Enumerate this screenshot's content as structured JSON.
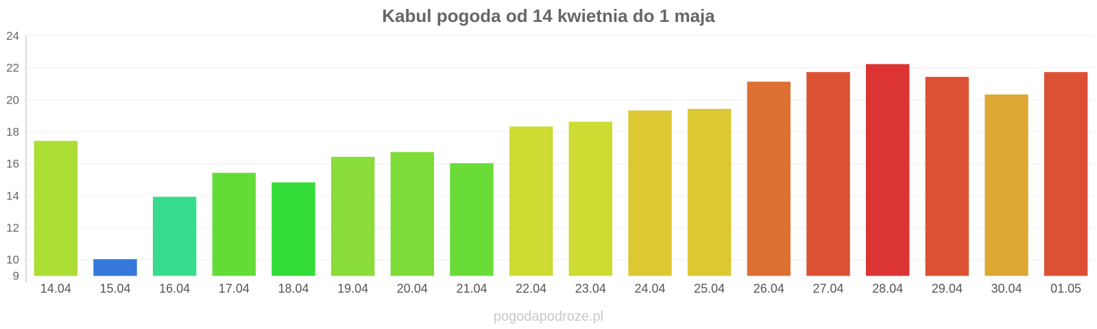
{
  "chart_data": {
    "type": "bar",
    "title": "Kabul pogoda od 14 kwietnia do 1 maja",
    "xlabel": "",
    "ylabel": "",
    "ylim": [
      9,
      24
    ],
    "yticks": [
      9,
      10,
      12,
      14,
      16,
      18,
      20,
      22,
      24
    ],
    "grid": true,
    "legend": "none",
    "categories": [
      "14.04",
      "15.04",
      "16.04",
      "17.04",
      "18.04",
      "19.04",
      "20.04",
      "21.04",
      "22.04",
      "23.04",
      "24.04",
      "25.04",
      "26.04",
      "27.04",
      "28.04",
      "29.04",
      "30.04",
      "01.05"
    ],
    "values": [
      17.4,
      10.0,
      13.9,
      15.4,
      14.8,
      16.4,
      16.7,
      16.0,
      18.3,
      18.6,
      19.3,
      19.4,
      21.1,
      21.7,
      22.2,
      21.4,
      20.3,
      21.7
    ],
    "colors": [
      "#acdd35",
      "#3478dc",
      "#36dc8c",
      "#64dc38",
      "#34dc38",
      "#8adc38",
      "#7ddc38",
      "#6adc38",
      "#ccdc33",
      "#ccdc33",
      "#dcc833",
      "#dcc833",
      "#dc7033",
      "#dc5033",
      "#dc3333",
      "#dc5033",
      "#dca833",
      "#dc5033"
    ]
  },
  "credit": "pogodapodroze.pl"
}
